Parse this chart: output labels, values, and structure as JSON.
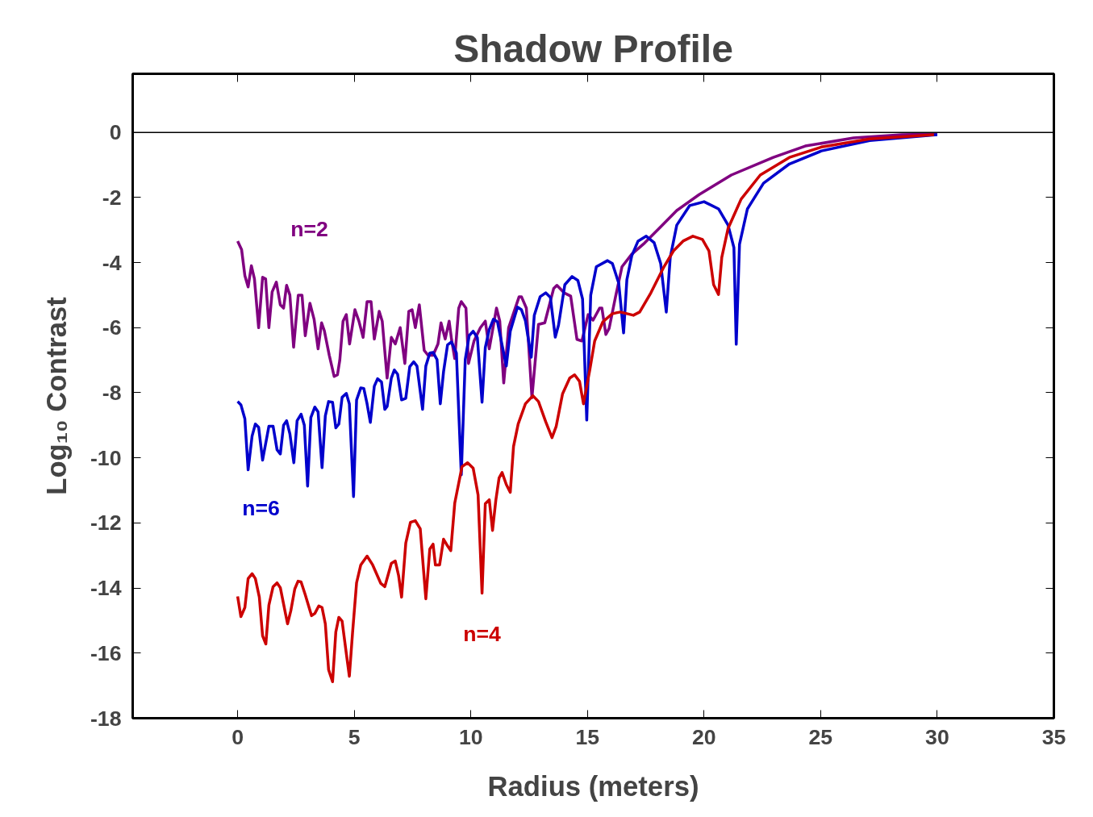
{
  "chart_data": {
    "type": "line",
    "title": "Shadow Profile",
    "xlabel": "Radius (meters)",
    "ylabel": "Log₁₀ Contrast",
    "xlim": [
      -4.5,
      35
    ],
    "ylim": [
      -18,
      1.8
    ],
    "xticks": [
      0,
      5,
      10,
      15,
      20,
      25,
      30,
      35
    ],
    "yticks": [
      0,
      -2,
      -4,
      -6,
      -8,
      -10,
      -12,
      -14,
      -16,
      -18
    ],
    "grid": false,
    "legend": false,
    "marker": "none",
    "line_style": "solid",
    "ref_lines": [
      {
        "axis": "y",
        "value": 0,
        "color": "#000000"
      }
    ],
    "series": [
      {
        "name": "n=2",
        "color": "#800080",
        "x": [
          0,
          0.17,
          0.31,
          0.45,
          0.59,
          0.72,
          0.9,
          1.07,
          1.2,
          1.34,
          1.48,
          1.66,
          1.83,
          1.97,
          2.1,
          2.24,
          2.4,
          2.6,
          2.76,
          2.9,
          3.1,
          3.28,
          3.45,
          3.6,
          3.72,
          3.93,
          4.14,
          4.28,
          4.38,
          4.52,
          4.66,
          4.8,
          5.03,
          5.2,
          5.38,
          5.55,
          5.72,
          5.86,
          6.07,
          6.2,
          6.41,
          6.59,
          6.76,
          6.97,
          7.17,
          7.34,
          7.48,
          7.62,
          7.79,
          8.0,
          8.17,
          8.38,
          8.59,
          8.72,
          8.9,
          9.07,
          9.17,
          9.31,
          9.48,
          9.59,
          9.79,
          9.9,
          10.14,
          10.41,
          10.62,
          10.79,
          11.1,
          11.24,
          11.41,
          11.62,
          12.07,
          12.17,
          12.38,
          12.62,
          12.9,
          13.17,
          13.55,
          13.69,
          14.0,
          14.28,
          14.55,
          14.76,
          15.03,
          15.24,
          15.52,
          15.62,
          15.79,
          15.93,
          16.21,
          16.48,
          16.9,
          17.45,
          18.14,
          18.83,
          19.79,
          21.17,
          22.97,
          24.34,
          26.41,
          28.48,
          30.0
        ],
        "values": [
          -3.34,
          -3.6,
          -4.4,
          -4.75,
          -4.1,
          -4.5,
          -6.0,
          -4.45,
          -4.5,
          -6.0,
          -4.9,
          -4.6,
          -5.3,
          -5.4,
          -4.7,
          -5.0,
          -6.6,
          -5.0,
          -5.0,
          -6.25,
          -5.25,
          -5.75,
          -6.65,
          -5.85,
          -6.1,
          -6.85,
          -7.5,
          -7.45,
          -7.0,
          -5.8,
          -5.6,
          -6.5,
          -5.45,
          -5.8,
          -6.3,
          -5.2,
          -5.2,
          -6.35,
          -5.5,
          -5.8,
          -7.55,
          -6.3,
          -6.5,
          -6.0,
          -7.1,
          -5.5,
          -5.45,
          -6.0,
          -5.3,
          -6.7,
          -6.85,
          -6.85,
          -6.5,
          -5.85,
          -6.35,
          -5.8,
          -6.35,
          -6.95,
          -5.4,
          -5.2,
          -5.4,
          -7.1,
          -6.4,
          -6.0,
          -5.8,
          -6.65,
          -5.4,
          -5.8,
          -7.7,
          -6.0,
          -5.05,
          -5.05,
          -5.4,
          -8.15,
          -5.9,
          -5.85,
          -4.8,
          -4.7,
          -4.93,
          -5.03,
          -6.36,
          -6.41,
          -5.6,
          -5.77,
          -5.4,
          -5.4,
          -6.21,
          -6.02,
          -5.03,
          -4.13,
          -3.74,
          -3.4,
          -2.9,
          -2.4,
          -1.91,
          -1.31,
          -0.77,
          -0.42,
          -0.17,
          -0.07,
          -0.05
        ]
      },
      {
        "name": "n=6",
        "color": "#0000cc",
        "x": [
          0,
          0.14,
          0.31,
          0.45,
          0.62,
          0.76,
          0.9,
          1.07,
          1.34,
          1.52,
          1.69,
          1.83,
          1.97,
          2.1,
          2.24,
          2.41,
          2.55,
          2.72,
          2.86,
          3.0,
          3.14,
          3.31,
          3.45,
          3.62,
          3.76,
          3.9,
          4.07,
          4.21,
          4.34,
          4.48,
          4.66,
          4.79,
          4.97,
          5.1,
          5.28,
          5.41,
          5.55,
          5.69,
          5.86,
          6.0,
          6.17,
          6.31,
          6.41,
          6.59,
          6.72,
          6.86,
          7.03,
          7.21,
          7.38,
          7.55,
          7.69,
          7.93,
          8.07,
          8.24,
          8.38,
          8.55,
          8.69,
          8.83,
          9.0,
          9.17,
          9.38,
          9.59,
          9.76,
          9.93,
          10.1,
          10.28,
          10.48,
          10.62,
          10.79,
          10.97,
          11.14,
          11.52,
          11.69,
          12.0,
          12.17,
          12.34,
          12.59,
          12.72,
          12.97,
          13.21,
          13.41,
          13.62,
          13.76,
          14.03,
          14.34,
          14.59,
          14.79,
          14.97,
          15.14,
          15.38,
          15.86,
          16.07,
          16.34,
          16.55,
          16.69,
          16.9,
          17.17,
          17.52,
          17.86,
          18.14,
          18.38,
          18.55,
          18.83,
          19.38,
          20.0,
          20.62,
          21.03,
          21.28,
          21.38,
          21.52,
          21.86,
          22.55,
          23.66,
          25.03,
          27.1,
          30.0
        ],
        "values": [
          -8.27,
          -8.37,
          -8.8,
          -10.37,
          -9.33,
          -8.96,
          -9.06,
          -10.07,
          -9.03,
          -9.03,
          -9.75,
          -9.88,
          -9.0,
          -8.86,
          -9.26,
          -10.15,
          -8.86,
          -8.66,
          -9.0,
          -10.87,
          -8.76,
          -8.44,
          -8.59,
          -10.3,
          -8.71,
          -8.27,
          -8.29,
          -9.08,
          -8.96,
          -8.14,
          -8.02,
          -8.34,
          -11.19,
          -8.22,
          -7.85,
          -7.87,
          -8.34,
          -8.91,
          -7.8,
          -7.57,
          -7.67,
          -8.51,
          -8.42,
          -7.55,
          -7.3,
          -7.43,
          -8.22,
          -8.17,
          -7.2,
          -7.05,
          -7.18,
          -8.51,
          -7.18,
          -6.78,
          -6.76,
          -6.98,
          -8.34,
          -7.35,
          -6.53,
          -6.44,
          -6.78,
          -10.52,
          -6.98,
          -6.24,
          -6.11,
          -6.31,
          -8.29,
          -6.61,
          -6.06,
          -5.74,
          -5.82,
          -7.18,
          -6.11,
          -5.37,
          -5.45,
          -5.79,
          -6.91,
          -5.62,
          -5.05,
          -4.93,
          -5.07,
          -6.29,
          -5.92,
          -4.68,
          -4.43,
          -4.55,
          -5.12,
          -8.84,
          -5.0,
          -4.13,
          -3.94,
          -4.03,
          -4.63,
          -6.16,
          -4.53,
          -3.79,
          -3.34,
          -3.19,
          -3.39,
          -4.03,
          -5.52,
          -3.84,
          -2.85,
          -2.25,
          -2.13,
          -2.35,
          -2.85,
          -3.54,
          -6.51,
          -3.44,
          -2.35,
          -1.56,
          -0.97,
          -0.57,
          -0.25,
          -0.07
        ]
      },
      {
        "name": "n=4",
        "color": "#cc0000",
        "x": [
          0,
          0.14,
          0.31,
          0.45,
          0.62,
          0.76,
          0.93,
          1.07,
          1.21,
          1.34,
          1.52,
          1.69,
          1.83,
          2.14,
          2.28,
          2.45,
          2.59,
          2.72,
          2.9,
          3.17,
          3.31,
          3.48,
          3.62,
          3.76,
          3.9,
          4.07,
          4.21,
          4.34,
          4.48,
          4.66,
          4.79,
          4.93,
          5.1,
          5.28,
          5.55,
          5.79,
          6.14,
          6.31,
          6.59,
          6.76,
          6.9,
          7.03,
          7.21,
          7.41,
          7.62,
          7.83,
          8.07,
          8.24,
          8.38,
          8.48,
          8.66,
          8.83,
          8.97,
          9.14,
          9.31,
          9.62,
          9.86,
          10.1,
          10.31,
          10.48,
          10.62,
          10.79,
          10.93,
          11.07,
          11.21,
          11.34,
          11.52,
          11.69,
          11.83,
          12.03,
          12.34,
          12.66,
          12.9,
          13.21,
          13.48,
          13.66,
          13.93,
          14.24,
          14.45,
          14.66,
          14.83,
          15.1,
          15.31,
          15.66,
          16.07,
          16.41,
          16.97,
          17.24,
          17.72,
          18.28,
          18.69,
          19.1,
          19.52,
          19.93,
          20.21,
          20.41,
          20.62,
          20.76,
          21.03,
          21.59,
          22.41,
          23.66,
          25.03,
          27.1,
          29.86
        ],
        "values": [
          -14.26,
          -14.88,
          -14.6,
          -13.71,
          -13.56,
          -13.71,
          -14.28,
          -15.47,
          -15.72,
          -14.53,
          -13.96,
          -13.84,
          -13.99,
          -15.1,
          -14.7,
          -14.03,
          -13.79,
          -13.81,
          -14.21,
          -14.85,
          -14.78,
          -14.55,
          -14.6,
          -15.1,
          -16.51,
          -16.88,
          -15.35,
          -14.9,
          -15.02,
          -16.01,
          -16.71,
          -15.35,
          -13.84,
          -13.29,
          -13.02,
          -13.29,
          -13.86,
          -13.96,
          -13.24,
          -13.17,
          -13.61,
          -14.28,
          -12.62,
          -11.98,
          -11.93,
          -12.18,
          -14.33,
          -12.8,
          -12.65,
          -13.29,
          -13.29,
          -12.5,
          -12.67,
          -12.85,
          -11.39,
          -10.27,
          -10.15,
          -10.32,
          -11.14,
          -14.16,
          -11.41,
          -11.29,
          -12.23,
          -11.31,
          -10.62,
          -10.45,
          -10.82,
          -11.06,
          -9.65,
          -8.96,
          -8.34,
          -8.09,
          -8.27,
          -8.89,
          -9.38,
          -9.03,
          -8.04,
          -7.55,
          -7.45,
          -7.65,
          -8.34,
          -7.3,
          -6.41,
          -5.82,
          -5.57,
          -5.52,
          -5.62,
          -5.52,
          -4.93,
          -4.13,
          -3.64,
          -3.34,
          -3.19,
          -3.29,
          -3.64,
          -4.68,
          -4.98,
          -3.84,
          -2.95,
          -2.05,
          -1.31,
          -0.77,
          -0.45,
          -0.2,
          -0.07
        ]
      }
    ]
  }
}
